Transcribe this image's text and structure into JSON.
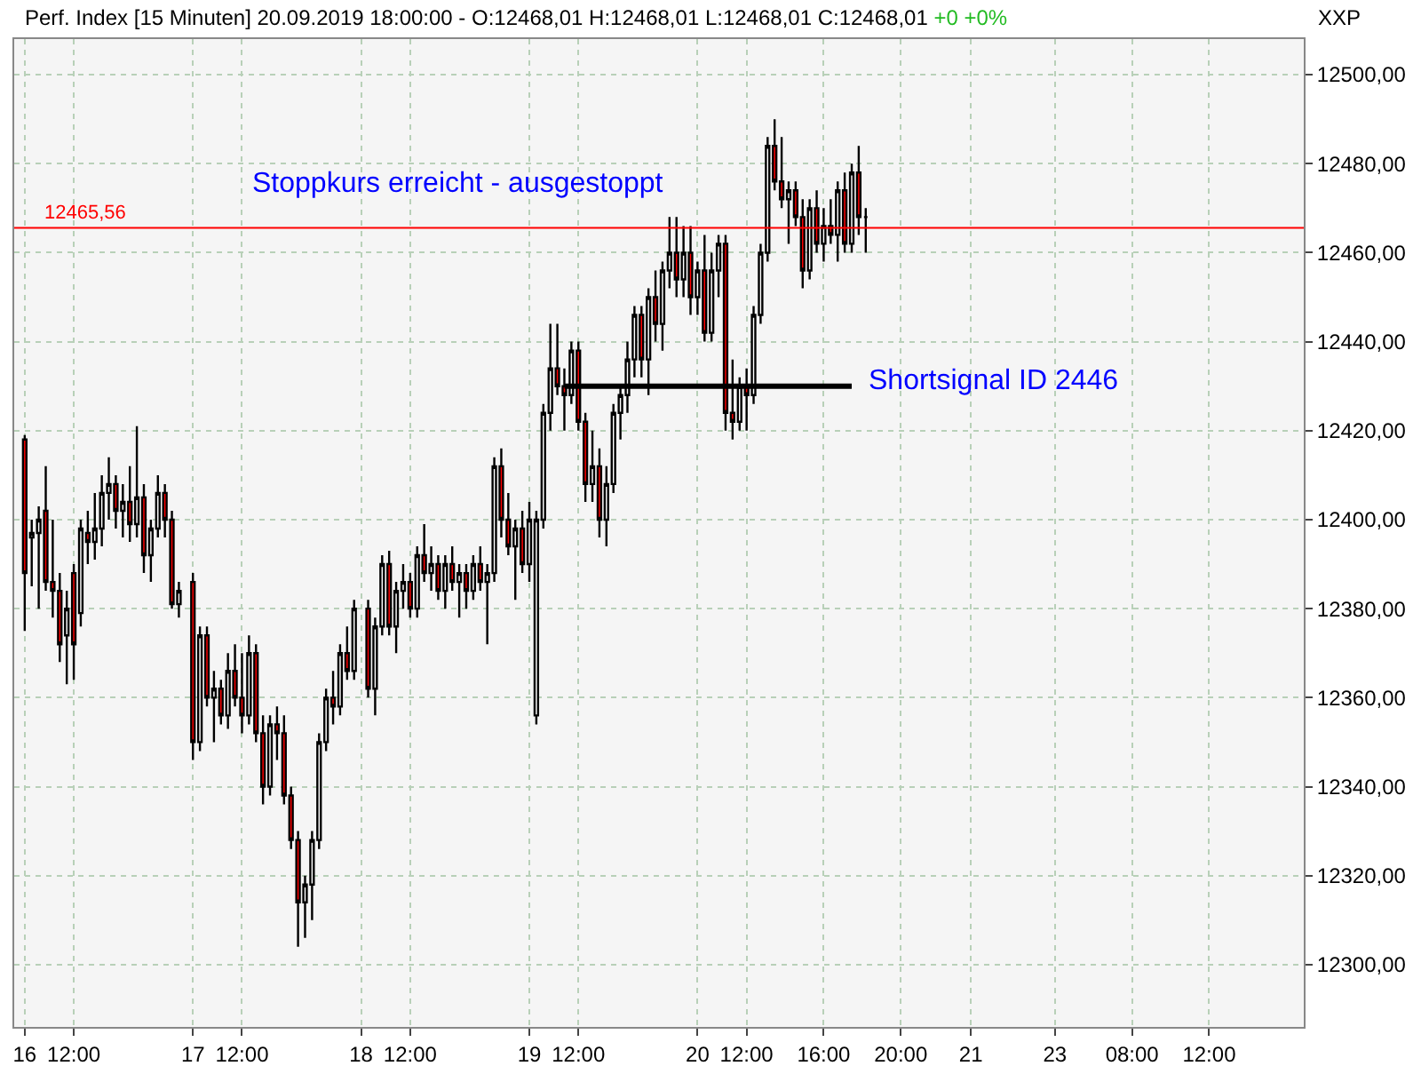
{
  "chart_data": {
    "type": "candlestick",
    "title": "Perf. Index [15 Minuten] 20.09.2019 18:00:00 - O:12468,01 H:12468,01 L:12468,01 C:12468,01",
    "subtitle": "+0 +0%",
    "ylabel": "XXP",
    "categories": [
      null,
      "16",
      null,
      null,
      null,
      null,
      null,
      null,
      "12:00",
      null,
      null,
      null,
      null,
      null,
      null,
      null,
      null,
      null,
      null,
      null,
      null,
      null,
      null,
      null,
      null,
      "17",
      null,
      null,
      null,
      null,
      null,
      null,
      "12:00",
      null,
      null,
      null,
      null,
      null,
      null,
      null,
      null,
      null,
      null,
      null,
      null,
      null,
      null,
      null,
      null,
      "18",
      null,
      null,
      null,
      null,
      null,
      null,
      "12:00",
      null,
      null,
      null,
      null,
      null,
      null,
      null,
      null,
      null,
      null,
      null,
      null,
      null,
      null,
      null,
      null,
      "19",
      null,
      null,
      null,
      null,
      null,
      null,
      "12:00",
      null,
      null,
      null,
      null,
      null,
      null,
      null,
      null,
      null,
      null,
      null,
      null,
      null,
      null,
      null,
      null,
      "20",
      null,
      null,
      null,
      null,
      null,
      null,
      "12:00",
      null,
      null,
      null,
      null,
      null,
      null,
      null,
      null,
      null,
      null,
      "16:00",
      null,
      null,
      null,
      null,
      null,
      null,
      null,
      null,
      null,
      null,
      "20:00",
      null,
      null,
      null,
      null,
      null,
      null,
      null,
      null,
      null,
      "21",
      null,
      null,
      null,
      null,
      null,
      null,
      null,
      null,
      null,
      null,
      null,
      "23",
      null,
      null,
      null,
      null,
      null,
      null,
      null,
      null,
      null,
      null,
      "08:00",
      null,
      null,
      null,
      null,
      null,
      null,
      null,
      null,
      null,
      null,
      "12:00",
      null,
      null,
      null,
      null,
      null,
      null,
      null,
      null,
      null,
      null,
      null,
      null,
      null
    ],
    "ohlc": [
      null,
      [
        12418,
        12419,
        12375,
        12388
      ],
      [
        12396,
        12400,
        12385,
        12397
      ],
      [
        12397,
        12403,
        12380,
        12400
      ],
      [
        12402,
        12412,
        12384,
        12386
      ],
      [
        12386,
        12400,
        12378,
        12384
      ],
      [
        12384,
        12388,
        12368,
        12372
      ],
      [
        12374,
        12384,
        12363,
        12380
      ],
      [
        12388,
        12390,
        12364,
        12372
      ],
      [
        12379,
        12400,
        12376,
        12398
      ],
      [
        12397,
        12402,
        12390,
        12395
      ],
      [
        12395,
        12406,
        12391,
        12398
      ],
      [
        12398,
        12410,
        12394,
        12406
      ],
      [
        12406,
        12414,
        12400,
        12408
      ],
      [
        12408,
        12410,
        12398,
        12402
      ],
      [
        12402,
        12408,
        12396,
        12404
      ],
      [
        12404,
        12412,
        12395,
        12399
      ],
      [
        12399,
        12421,
        12396,
        12405
      ],
      [
        12405,
        12408,
        12388,
        12392
      ],
      [
        12392,
        12400,
        12386,
        12398
      ],
      [
        12398,
        12410,
        12396,
        12406
      ],
      [
        12406,
        12408,
        12396,
        12400
      ],
      [
        12400,
        12402,
        12380,
        12381
      ],
      [
        12381,
        12386,
        12378,
        12384
      ],
      null,
      [
        12386,
        12388,
        12346,
        12350
      ],
      [
        12350,
        12376,
        12348,
        12374
      ],
      [
        12374,
        12376,
        12358,
        12360
      ],
      [
        12360,
        12366,
        12350,
        12362
      ],
      [
        12362,
        12364,
        12354,
        12356
      ],
      [
        12356,
        12370,
        12353,
        12366
      ],
      [
        12366,
        12372,
        12358,
        12360
      ],
      [
        12360,
        12370,
        12352,
        12356
      ],
      [
        12356,
        12374,
        12354,
        12370
      ],
      [
        12370,
        12372,
        12350,
        12352
      ],
      [
        12352,
        12356,
        12336,
        12340
      ],
      [
        12340,
        12356,
        12338,
        12354
      ],
      [
        12354,
        12358,
        12346,
        12352
      ],
      [
        12352,
        12356,
        12336,
        12338
      ],
      [
        12338,
        12340,
        12326,
        12328
      ],
      [
        12328,
        12330,
        12304,
        12314
      ],
      [
        12314,
        12320,
        12306,
        12318
      ],
      [
        12318,
        12330,
        12310,
        12328
      ],
      [
        12328,
        12352,
        12326,
        12350
      ],
      [
        12350,
        12362,
        12348,
        12360
      ],
      [
        12360,
        12366,
        12354,
        12358
      ],
      [
        12358,
        12372,
        12356,
        12370
      ],
      [
        12370,
        12376,
        12364,
        12366
      ],
      [
        12366,
        12382,
        12364,
        12380
      ],
      null,
      [
        12380,
        12382,
        12360,
        12362
      ],
      [
        12362,
        12378,
        12356,
        12376
      ],
      [
        12376,
        12392,
        12374,
        12390
      ],
      [
        12390,
        12393,
        12374,
        12376
      ],
      [
        12376,
        12386,
        12370,
        12384
      ],
      [
        12384,
        12390,
        12380,
        12386
      ],
      [
        12386,
        12388,
        12378,
        12380
      ],
      [
        12380,
        12394,
        12378,
        12392
      ],
      [
        12392,
        12399,
        12386,
        12388
      ],
      [
        12388,
        12394,
        12384,
        12390
      ],
      [
        12390,
        12392,
        12382,
        12384
      ],
      [
        12384,
        12392,
        12380,
        12390
      ],
      [
        12390,
        12394,
        12384,
        12386
      ],
      [
        12386,
        12390,
        12378,
        12388
      ],
      [
        12388,
        12390,
        12380,
        12384
      ],
      [
        12384,
        12392,
        12382,
        12390
      ],
      [
        12390,
        12394,
        12384,
        12386
      ],
      [
        12386,
        12390,
        12372,
        12388
      ],
      [
        12388,
        12414,
        12386,
        12412
      ],
      [
        12412,
        12416,
        12396,
        12400
      ],
      [
        12400,
        12406,
        12392,
        12394
      ],
      [
        12394,
        12400,
        12382,
        12398
      ],
      [
        12398,
        12402,
        12388,
        12390
      ],
      [
        12390,
        12404,
        12386,
        12400
      ],
      [
        12356,
        12402,
        12354,
        12400
      ],
      [
        12400,
        12426,
        12398,
        12424
      ],
      [
        12424,
        12444,
        12420,
        12434
      ],
      [
        12434,
        12444,
        12428,
        12430
      ],
      [
        12430,
        12434,
        12420,
        12428
      ],
      [
        12428,
        12440,
        12426,
        12438
      ],
      [
        12438,
        12440,
        12420,
        12422
      ],
      [
        12422,
        12424,
        12404,
        12408
      ],
      [
        12408,
        12420,
        12404,
        12412
      ],
      [
        12412,
        12416,
        12396,
        12400
      ],
      [
        12400,
        12412,
        12394,
        12408
      ],
      [
        12408,
        12426,
        12406,
        12424
      ],
      [
        12424,
        12430,
        12418,
        12428
      ],
      [
        12428,
        12440,
        12424,
        12436
      ],
      [
        12436,
        12448,
        12432,
        12446
      ],
      [
        12446,
        12448,
        12432,
        12436
      ],
      [
        12436,
        12452,
        12428,
        12450
      ],
      [
        12450,
        12456,
        12440,
        12444
      ],
      [
        12444,
        12458,
        12438,
        12456
      ],
      [
        12456,
        12468,
        12452,
        12460
      ],
      [
        12460,
        12468,
        12450,
        12454
      ],
      [
        12454,
        12466,
        12450,
        12460
      ],
      [
        12460,
        12466,
        12446,
        12450
      ],
      [
        12450,
        12458,
        12446,
        12456
      ],
      [
        12456,
        12464,
        12440,
        12442
      ],
      [
        12442,
        12460,
        12440,
        12456
      ],
      [
        12456,
        12464,
        12450,
        12462
      ],
      [
        12462,
        12464,
        12420,
        12424
      ],
      [
        12424,
        12436,
        12418,
        12422
      ],
      [
        12422,
        12432,
        12420,
        12430
      ],
      [
        12430,
        12434,
        12420,
        12428
      ],
      [
        12428,
        12448,
        12426,
        12446
      ],
      [
        12446,
        12462,
        12444,
        12460
      ],
      [
        12460,
        12486,
        12458,
        12484
      ],
      [
        12484,
        12490,
        12474,
        12476
      ],
      [
        12476,
        12486,
        12470,
        12472
      ],
      [
        12472,
        12476,
        12462,
        12474
      ],
      [
        12474,
        12476,
        12466,
        12468
      ],
      [
        12468,
        12472,
        12452,
        12456
      ],
      [
        12456,
        12472,
        12454,
        12470
      ],
      [
        12470,
        12474,
        12460,
        12462
      ],
      [
        12462,
        12470,
        12458,
        12466
      ],
      [
        12466,
        12472,
        12462,
        12464
      ],
      [
        12464,
        12476,
        12458,
        12474
      ],
      [
        12474,
        12478,
        12460,
        12462
      ],
      [
        12462,
        12480,
        12460,
        12478
      ],
      [
        12478,
        12484,
        12464,
        12468
      ],
      [
        12468,
        12470,
        12460,
        12468
      ],
      null,
      null,
      null,
      null,
      null,
      null,
      null,
      null,
      null,
      null,
      null,
      null,
      null,
      null,
      null,
      null,
      null,
      null,
      null,
      null,
      null,
      null,
      null,
      null,
      null,
      null,
      null,
      null,
      null,
      null,
      null,
      null,
      null,
      null,
      null,
      null,
      null,
      null,
      null,
      null,
      null,
      null,
      null,
      null,
      null,
      null,
      null,
      null,
      null,
      null,
      null,
      null,
      null,
      null,
      null,
      null,
      null,
      null,
      null,
      null,
      null,
      null
    ],
    "series": [
      {
        "type": "line",
        "color": "#000000",
        "values": [
          null,
          null,
          null,
          null,
          null,
          null,
          null,
          null,
          null,
          null,
          null,
          null,
          null,
          null,
          null,
          null,
          null,
          null,
          null,
          null,
          null,
          null,
          null,
          null,
          null,
          null,
          null,
          null,
          null,
          null,
          null,
          null,
          null,
          null,
          null,
          null,
          null,
          null,
          null,
          null,
          null,
          null,
          null,
          null,
          null,
          null,
          null,
          null,
          null,
          null,
          null,
          null,
          null,
          null,
          null,
          null,
          null,
          null,
          null,
          null,
          null,
          null,
          null,
          null,
          null,
          null,
          null,
          null,
          null,
          null,
          null,
          null,
          null,
          null,
          null,
          null,
          null,
          null,
          12430,
          12430,
          12430,
          12430,
          12430,
          12430,
          12430,
          12430,
          12430,
          12430,
          12430,
          12430,
          12430,
          12430,
          12430,
          12430,
          12430,
          12430,
          12430,
          12430,
          12430,
          12430,
          12430,
          12430,
          12430,
          12430,
          12430,
          12430,
          12430,
          12430,
          12430,
          12430,
          12430,
          12430,
          12430,
          12430,
          12430,
          12430,
          12430,
          12430,
          12430,
          12430,
          null,
          null,
          null,
          null,
          null,
          null,
          null,
          null,
          null,
          null,
          null,
          null,
          null,
          null,
          null,
          null,
          null,
          null,
          null,
          null,
          null,
          null,
          null,
          null,
          null,
          null,
          null,
          null,
          null,
          null,
          null,
          null,
          null,
          null,
          null,
          null,
          null,
          null,
          null,
          null,
          null,
          null,
          null,
          null,
          null,
          null,
          null,
          null,
          null,
          null,
          null,
          null,
          null,
          null,
          null,
          null,
          null,
          null,
          null,
          null,
          null,
          null,
          null,
          null
        ]
      }
    ],
    "ylim": [
      12286,
      12508
    ],
    "yticks": [
      {
        "value": 12300,
        "label": "12300,00"
      },
      {
        "value": 12320,
        "label": "12320,00"
      },
      {
        "value": 12340,
        "label": "12340,00"
      },
      {
        "value": 12360,
        "label": "12360,00"
      },
      {
        "value": 12380,
        "label": "12380,00"
      },
      {
        "value": 12400,
        "label": "12400,00"
      },
      {
        "value": 12420,
        "label": "12420,00"
      },
      {
        "value": 12440,
        "label": "12440,00"
      },
      {
        "value": 12460,
        "label": "12460,00"
      },
      {
        "value": 12480,
        "label": "12480,00"
      },
      {
        "value": 12500,
        "label": "12500,00"
      }
    ],
    "ref_lines": [
      {
        "axis": "y",
        "value": 12465.56,
        "label": "12465,56",
        "color": "#ff0000"
      }
    ],
    "annotations": [
      "Stoppkurs erreicht - ausgestoppt",
      "Shortsignal ID 2446"
    ],
    "grid": true
  }
}
